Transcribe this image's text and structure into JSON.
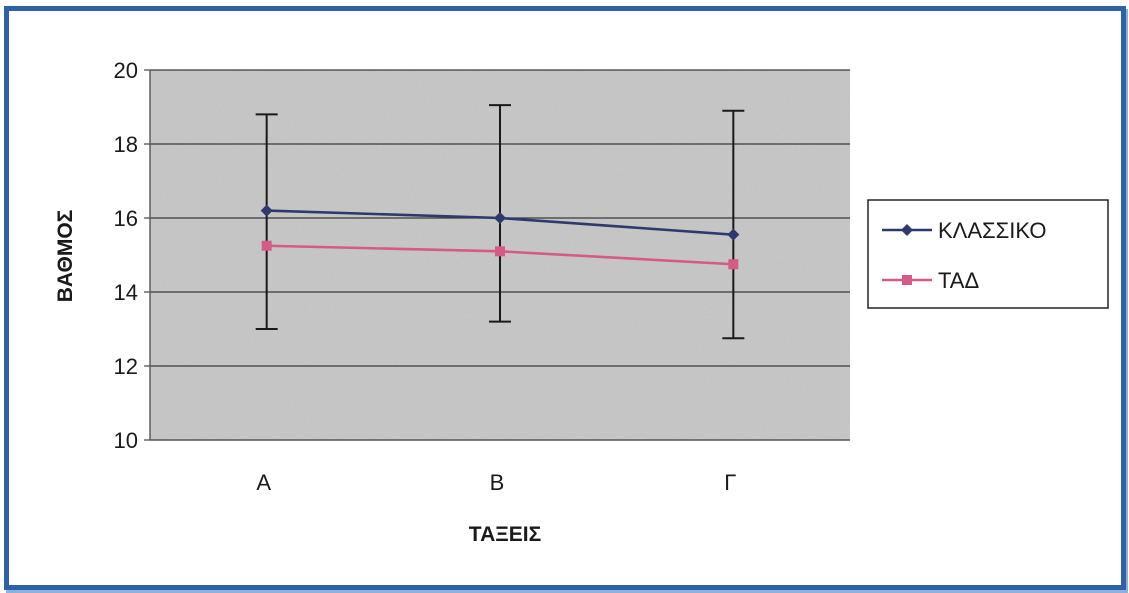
{
  "chart_data": {
    "type": "line",
    "title": "",
    "xlabel": "ΤΑΞΕΙΣ",
    "ylabel": "ΒΑΘΜΟΣ",
    "categories": [
      "A",
      "B",
      "Γ"
    ],
    "ylim": [
      10,
      20
    ],
    "yticks": [
      10,
      12,
      14,
      16,
      18,
      20
    ],
    "grid": true,
    "legend_position": "right",
    "background_color": "#c6c6c6",
    "series": [
      {
        "name": "ΚΛΑΣΣΙΚΟ",
        "values": [
          16.2,
          16.0,
          15.55
        ],
        "error_low": [
          13.0,
          13.2,
          12.75
        ],
        "error_high": [
          18.8,
          19.05,
          18.9
        ],
        "color": "#2e3a6e",
        "marker": "diamond-icon"
      },
      {
        "name": "ΤΑΔ",
        "values": [
          15.25,
          15.1,
          14.75
        ],
        "color": "#d65a86",
        "marker": "square-icon"
      }
    ]
  }
}
